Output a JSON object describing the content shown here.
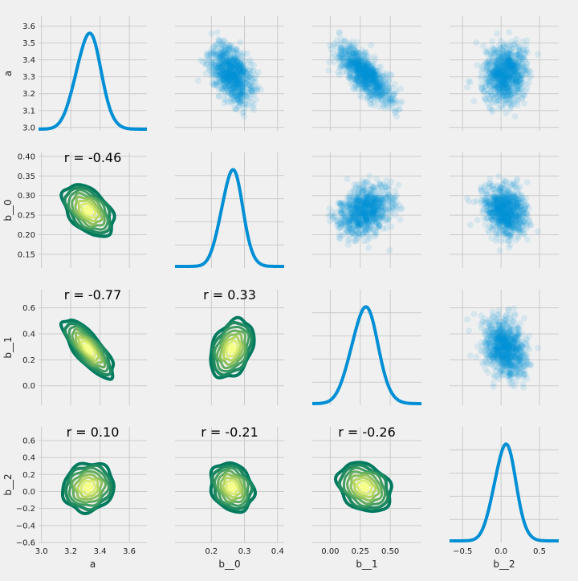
{
  "chart_data": {
    "type": "pairplot",
    "variables": [
      "a",
      "b__0",
      "b__1",
      "b__2"
    ],
    "axes": {
      "a": {
        "lim": [
          2.98,
          3.72
        ],
        "ticks": [
          3.0,
          3.2,
          3.4,
          3.6
        ],
        "tick_labels": [
          "3.0",
          "3.2",
          "3.4",
          "3.6"
        ],
        "ylim": [
          2.98,
          3.66
        ],
        "yticks": [
          3.0,
          3.1,
          3.2,
          3.3,
          3.4,
          3.5,
          3.6
        ],
        "ytick_labels": [
          "3.0",
          "3.1",
          "3.2",
          "3.3",
          "3.4",
          "3.5",
          "3.6"
        ]
      },
      "b__0": {
        "lim": [
          0.09,
          0.42
        ],
        "ticks": [
          0.2,
          0.3,
          0.4
        ],
        "tick_labels": [
          "0.2",
          "0.3",
          "0.4"
        ],
        "ylim": [
          0.115,
          0.41
        ],
        "yticks": [
          0.15,
          0.2,
          0.25,
          0.3,
          0.35,
          0.4
        ],
        "ytick_labels": [
          "0.15",
          "0.20",
          "0.25",
          "0.30",
          "0.35",
          "0.40"
        ]
      },
      "b__1": {
        "lim": [
          -0.15,
          0.76
        ],
        "ticks": [
          0.0,
          0.25,
          0.5
        ],
        "tick_labels": [
          "0.00",
          "0.25",
          "0.50"
        ],
        "ylim": [
          -0.15,
          0.74
        ],
        "yticks": [
          0.0,
          0.2,
          0.4,
          0.6
        ],
        "ytick_labels": [
          "0.0",
          "0.2",
          "0.4",
          "0.6"
        ]
      },
      "b__2": {
        "lim": [
          -0.67,
          0.75
        ],
        "ticks": [
          -0.5,
          0.0,
          0.5
        ],
        "tick_labels": [
          "−0.5",
          "0.0",
          "0.5"
        ],
        "ylim": [
          -0.6,
          0.76
        ],
        "yticks": [
          -0.6,
          -0.4,
          -0.2,
          0.0,
          0.2,
          0.4,
          0.6
        ],
        "ytick_labels": [
          "−0.6",
          "−0.4",
          "−0.2",
          "0.0",
          "0.2",
          "0.4",
          "0.6"
        ]
      }
    },
    "distributions": {
      "a": {
        "mean": 3.32,
        "sd": 0.085
      },
      "b__0": {
        "mean": 0.262,
        "sd": 0.032
      },
      "b__1": {
        "mean": 0.285,
        "sd": 0.11
      },
      "b__2": {
        "mean": 0.05,
        "sd": 0.14
      }
    },
    "correlations": [
      {
        "row": "b__0",
        "col": "a",
        "r": -0.46,
        "label": "r = -0.46"
      },
      {
        "row": "b__1",
        "col": "a",
        "r": -0.77,
        "label": "r = -0.77"
      },
      {
        "row": "b__1",
        "col": "b__0",
        "r": 0.33,
        "label": "r = 0.33"
      },
      {
        "row": "b__2",
        "col": "a",
        "r": 0.1,
        "label": "r = 0.10"
      },
      {
        "row": "b__2",
        "col": "b__0",
        "r": -0.21,
        "label": "r = -0.21"
      },
      {
        "row": "b__2",
        "col": "b__1",
        "r": -0.26,
        "label": "r = -0.26"
      }
    ],
    "diagonal": "kde",
    "upper": "scatter",
    "lower": "kde-contour",
    "grid": true,
    "colors": {
      "kde_line": "#008fd5",
      "scatter": "#008fd5",
      "contour_outer": "#007a5e",
      "contour_inner": "#f5ff8a",
      "background": "#f0f0f0",
      "grid": "#cbcbcb"
    }
  }
}
